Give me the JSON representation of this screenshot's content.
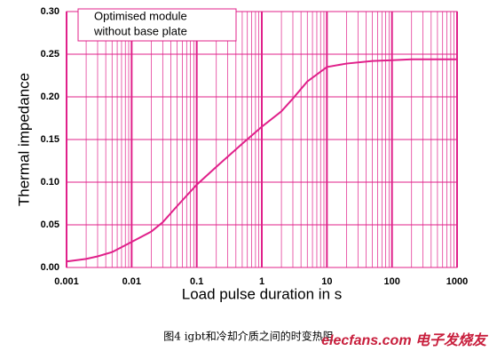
{
  "chart_data": {
    "type": "line",
    "y_label": "Thermal impedance",
    "x_label": "Load pulse duration in s",
    "annotation": [
      "Optimised module",
      "without base plate"
    ],
    "caption": "图4 igbt和冷却介质之间的时变热阻",
    "watermark": "elecfans.com 电子发烧友",
    "log_x": true,
    "grid": true,
    "grid_color": "#e0208a",
    "xlim": [
      0.001,
      1000
    ],
    "xticks": [
      0.001,
      0.01,
      0.1,
      1,
      10,
      100,
      1000
    ],
    "ylim": [
      0,
      0.3
    ],
    "yticks": [
      {
        "value": 0,
        "label": "0.00"
      },
      0.05,
      {
        "value": 0.1,
        "label": "0.10"
      },
      0.15,
      {
        "value": 0.2,
        "label": "0.20"
      },
      0.25,
      {
        "value": 0.3,
        "label": "0.30"
      }
    ],
    "x": [
      0.001,
      0.002,
      0.003,
      0.005,
      0.01,
      0.02,
      0.03,
      0.05,
      0.1,
      0.2,
      0.3,
      0.5,
      1,
      2,
      3,
      5,
      10,
      20,
      50,
      100,
      200,
      1000
    ],
    "series": [
      {
        "color": "#e0208a",
        "values": [
          0.007,
          0.01,
          0.013,
          0.018,
          0.03,
          0.042,
          0.053,
          0.072,
          0.097,
          0.118,
          0.13,
          0.145,
          0.165,
          0.183,
          0.198,
          0.218,
          0.235,
          0.239,
          0.242,
          0.243,
          0.244,
          0.244
        ]
      }
    ]
  }
}
